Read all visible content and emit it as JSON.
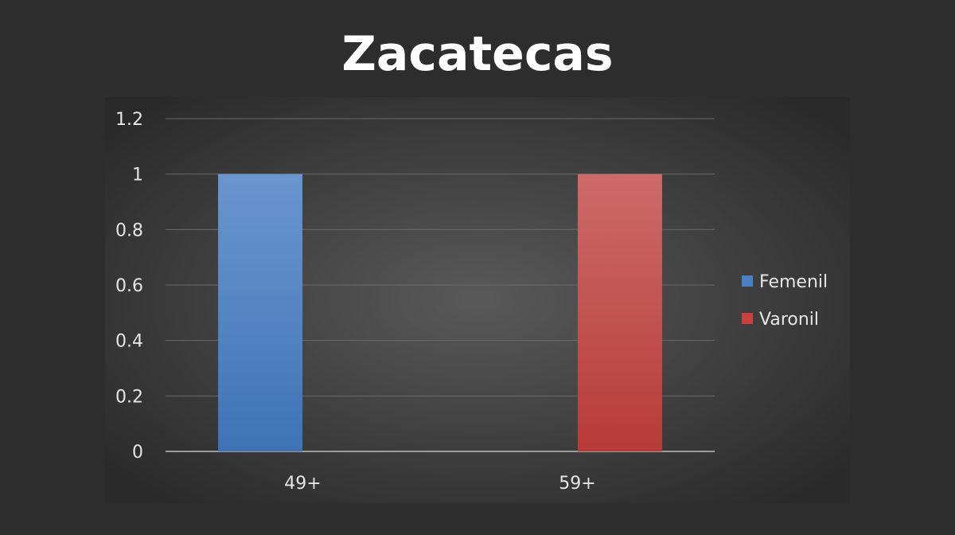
{
  "chart_data": {
    "type": "bar",
    "title": "Zacatecas",
    "categories": [
      "49+",
      "59+"
    ],
    "series": [
      {
        "name": "Femenil",
        "values": [
          1,
          0
        ],
        "color": "#4a80c4"
      },
      {
        "name": "Varonil",
        "values": [
          0,
          1
        ],
        "color": "#c9403d"
      }
    ],
    "ylim": [
      0,
      1.2
    ],
    "yticks": [
      "0",
      "0.2",
      "0.4",
      "0.6",
      "0.8",
      "1",
      "1.2"
    ],
    "ytick_values": [
      0,
      0.2,
      0.4,
      0.6,
      0.8,
      1,
      1.2
    ],
    "grid": true,
    "legend": "right"
  }
}
